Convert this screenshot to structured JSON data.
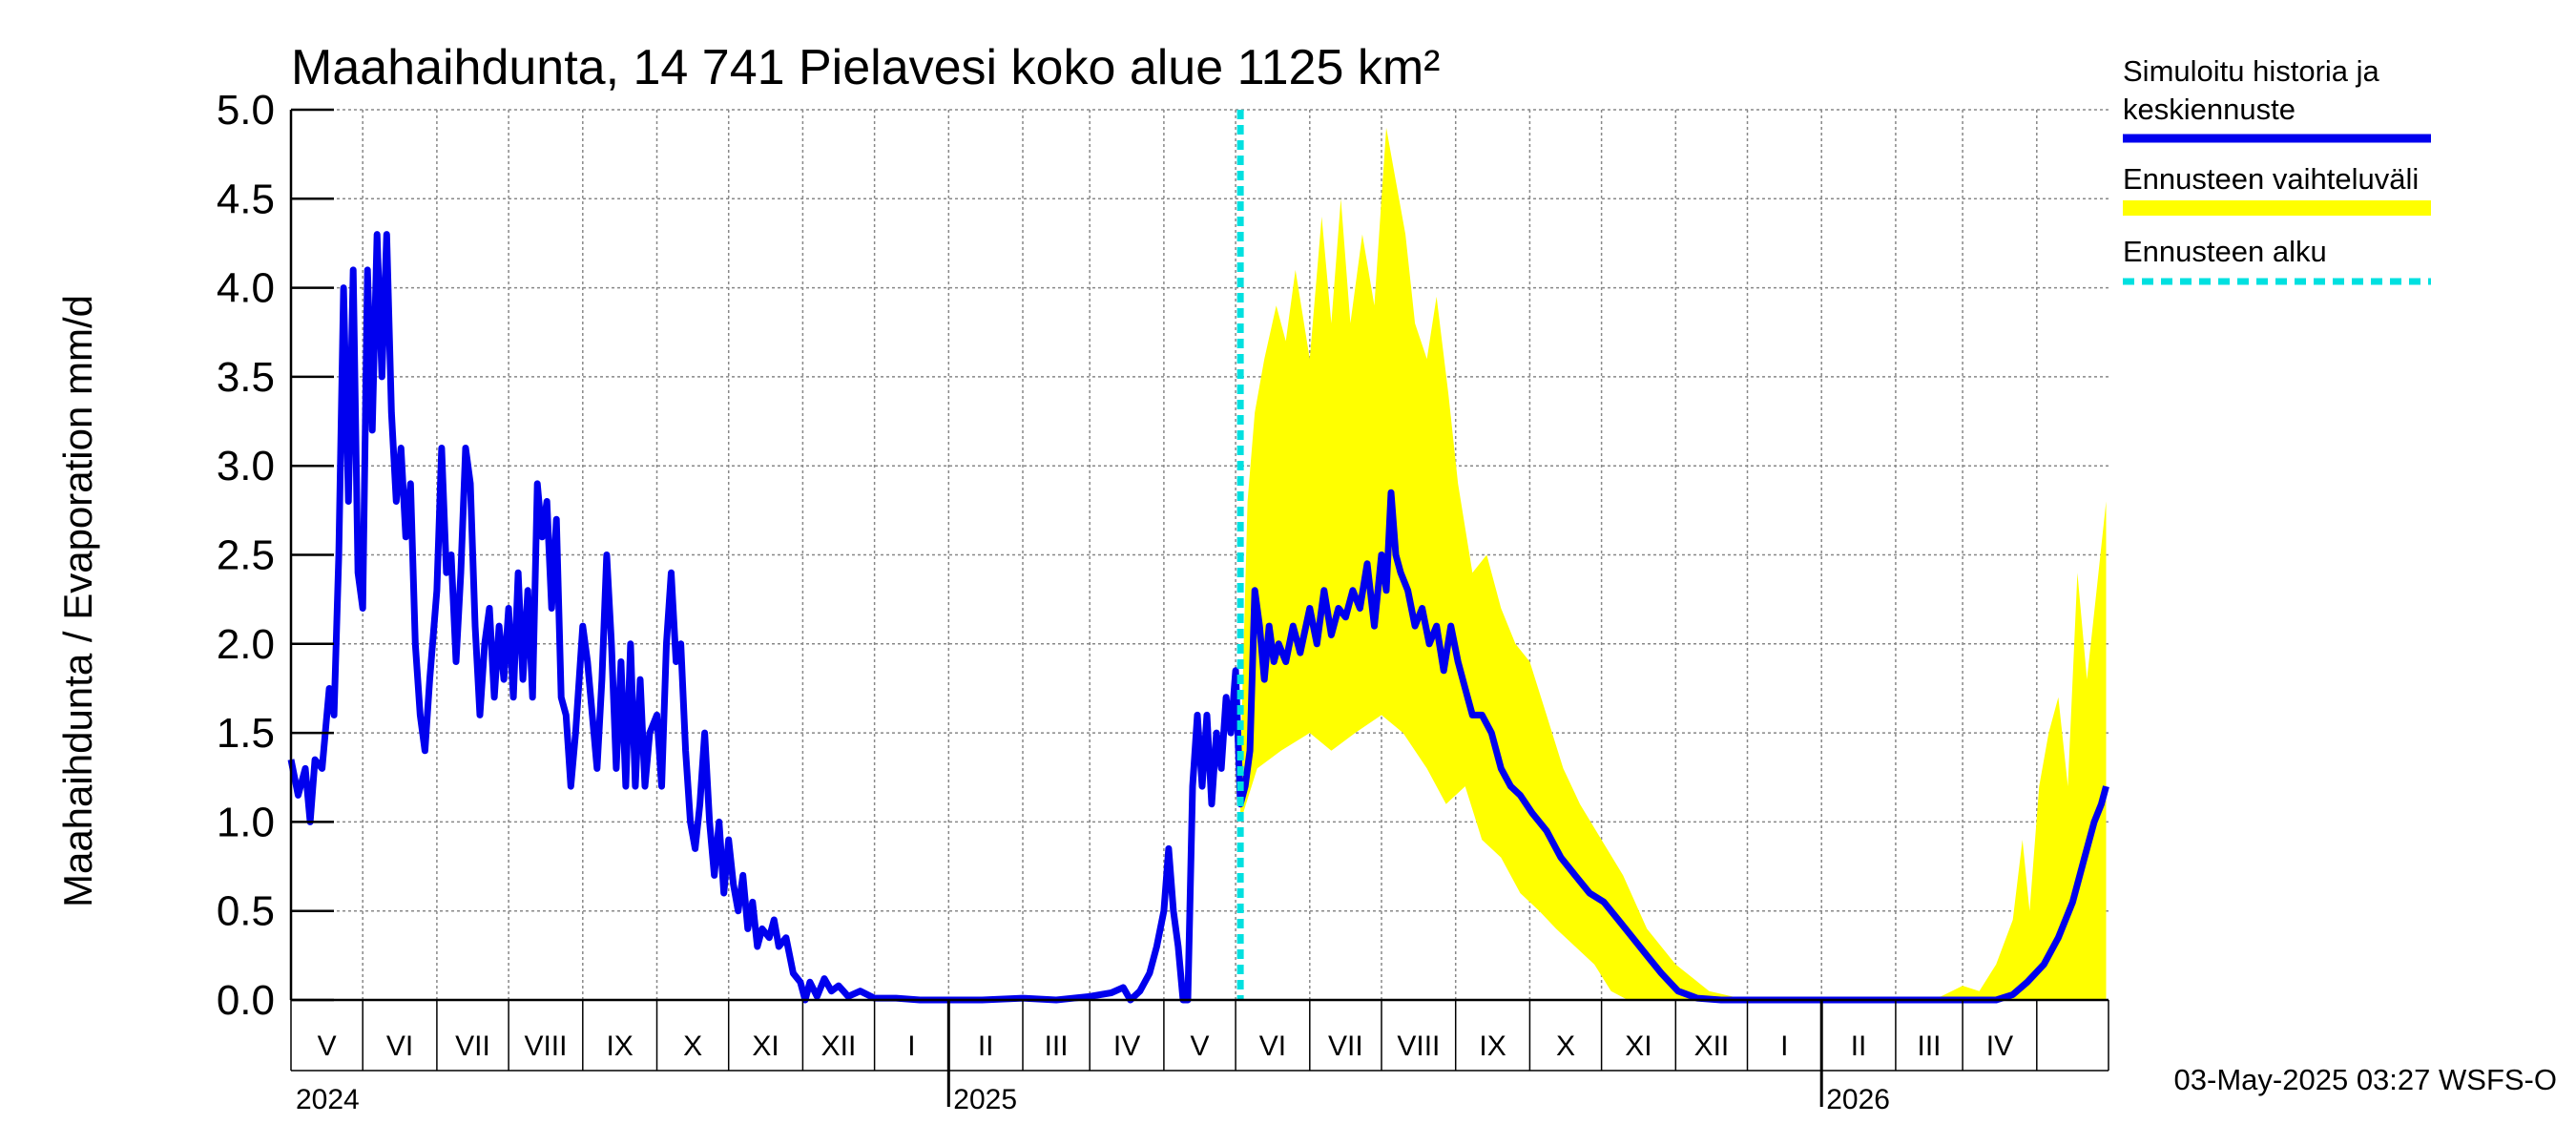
{
  "chart_data": {
    "type": "line",
    "title": "Maahaihdunta, 14 741 Pielavesi koko alue 1125 km²",
    "ylabel": "Maahaihdunta / Evaporation   mm/d",
    "ylim": [
      0,
      5
    ],
    "y_ticks": [
      "0.0",
      "0.5",
      "1.0",
      "1.5",
      "2.0",
      "2.5",
      "3.0",
      "3.5",
      "4.0",
      "4.5",
      "5.0"
    ],
    "x_range": [
      "2024-04-01",
      "2026-04-30"
    ],
    "grid": true,
    "month_labels": [
      "V",
      "VI",
      "VII",
      "VIII",
      "IX",
      "X",
      "XI",
      "XII",
      "I",
      "II",
      "III",
      "IV",
      "V",
      "VI",
      "VII",
      "VIII",
      "IX",
      "X",
      "XI",
      "XII",
      "I",
      "II",
      "III",
      "IV"
    ],
    "year_labels": [
      "2024",
      "2025",
      "2026"
    ],
    "forecast_start": "2025-05-03",
    "legend": [
      {
        "line1": "Simuloitu historia ja",
        "line2": "keskiennuste",
        "color": "#0000ee",
        "style": "solid"
      },
      {
        "line1": "Ennusteen vaihteluväli",
        "line2": "",
        "color": "#ffff00",
        "style": "band"
      },
      {
        "line1": "Ennusteen alku",
        "line2": "",
        "color": "#00e0e0",
        "style": "dashed"
      }
    ],
    "series": [
      {
        "name": "Simuloitu historia ja keskiennuste",
        "color": "#0000ee",
        "points": [
          [
            "2024-04-01",
            1.35
          ],
          [
            "2024-04-04",
            1.15
          ],
          [
            "2024-04-07",
            1.3
          ],
          [
            "2024-04-09",
            1.0
          ],
          [
            "2024-04-11",
            1.35
          ],
          [
            "2024-04-14",
            1.3
          ],
          [
            "2024-04-17",
            1.75
          ],
          [
            "2024-04-19",
            1.6
          ],
          [
            "2024-04-21",
            2.5
          ],
          [
            "2024-04-23",
            4.0
          ],
          [
            "2024-04-25",
            2.8
          ],
          [
            "2024-04-27",
            4.1
          ],
          [
            "2024-04-29",
            2.4
          ],
          [
            "2024-05-01",
            2.2
          ],
          [
            "2024-05-03",
            4.1
          ],
          [
            "2024-05-05",
            3.2
          ],
          [
            "2024-05-07",
            4.3
          ],
          [
            "2024-05-09",
            3.5
          ],
          [
            "2024-05-11",
            4.3
          ],
          [
            "2024-05-13",
            3.3
          ],
          [
            "2024-05-15",
            2.8
          ],
          [
            "2024-05-17",
            3.1
          ],
          [
            "2024-05-19",
            2.6
          ],
          [
            "2024-05-21",
            2.9
          ],
          [
            "2024-05-23",
            2.0
          ],
          [
            "2024-05-25",
            1.6
          ],
          [
            "2024-05-27",
            1.4
          ],
          [
            "2024-05-29",
            1.8
          ],
          [
            "2024-06-01",
            2.3
          ],
          [
            "2024-06-03",
            3.1
          ],
          [
            "2024-06-05",
            2.4
          ],
          [
            "2024-06-07",
            2.5
          ],
          [
            "2024-06-09",
            1.9
          ],
          [
            "2024-06-11",
            2.4
          ],
          [
            "2024-06-13",
            3.1
          ],
          [
            "2024-06-15",
            2.9
          ],
          [
            "2024-06-17",
            2.1
          ],
          [
            "2024-06-19",
            1.6
          ],
          [
            "2024-06-21",
            2.0
          ],
          [
            "2024-06-23",
            2.2
          ],
          [
            "2024-06-25",
            1.7
          ],
          [
            "2024-06-27",
            2.1
          ],
          [
            "2024-06-29",
            1.8
          ],
          [
            "2024-07-01",
            2.2
          ],
          [
            "2024-07-03",
            1.7
          ],
          [
            "2024-07-05",
            2.4
          ],
          [
            "2024-07-07",
            1.8
          ],
          [
            "2024-07-09",
            2.3
          ],
          [
            "2024-07-11",
            1.7
          ],
          [
            "2024-07-13",
            2.9
          ],
          [
            "2024-07-15",
            2.6
          ],
          [
            "2024-07-17",
            2.8
          ],
          [
            "2024-07-19",
            2.2
          ],
          [
            "2024-07-21",
            2.7
          ],
          [
            "2024-07-23",
            1.7
          ],
          [
            "2024-07-25",
            1.6
          ],
          [
            "2024-07-27",
            1.2
          ],
          [
            "2024-07-29",
            1.5
          ],
          [
            "2024-08-01",
            2.1
          ],
          [
            "2024-08-03",
            1.9
          ],
          [
            "2024-08-05",
            1.6
          ],
          [
            "2024-08-07",
            1.3
          ],
          [
            "2024-08-09",
            1.8
          ],
          [
            "2024-08-11",
            2.5
          ],
          [
            "2024-08-13",
            2.0
          ],
          [
            "2024-08-15",
            1.3
          ],
          [
            "2024-08-17",
            1.9
          ],
          [
            "2024-08-19",
            1.2
          ],
          [
            "2024-08-21",
            2.0
          ],
          [
            "2024-08-23",
            1.2
          ],
          [
            "2024-08-25",
            1.8
          ],
          [
            "2024-08-27",
            1.2
          ],
          [
            "2024-08-29",
            1.5
          ],
          [
            "2024-09-01",
            1.6
          ],
          [
            "2024-09-03",
            1.2
          ],
          [
            "2024-09-05",
            2.0
          ],
          [
            "2024-09-07",
            2.4
          ],
          [
            "2024-09-09",
            1.9
          ],
          [
            "2024-09-11",
            2.0
          ],
          [
            "2024-09-13",
            1.4
          ],
          [
            "2024-09-15",
            1.0
          ],
          [
            "2024-09-17",
            0.85
          ],
          [
            "2024-09-19",
            1.1
          ],
          [
            "2024-09-21",
            1.5
          ],
          [
            "2024-09-23",
            1.0
          ],
          [
            "2024-09-25",
            0.7
          ],
          [
            "2024-09-27",
            1.0
          ],
          [
            "2024-09-29",
            0.6
          ],
          [
            "2024-10-01",
            0.9
          ],
          [
            "2024-10-03",
            0.65
          ],
          [
            "2024-10-05",
            0.5
          ],
          [
            "2024-10-07",
            0.7
          ],
          [
            "2024-10-09",
            0.4
          ],
          [
            "2024-10-11",
            0.55
          ],
          [
            "2024-10-13",
            0.3
          ],
          [
            "2024-10-15",
            0.4
          ],
          [
            "2024-10-18",
            0.35
          ],
          [
            "2024-10-20",
            0.45
          ],
          [
            "2024-10-22",
            0.3
          ],
          [
            "2024-10-25",
            0.35
          ],
          [
            "2024-10-28",
            0.15
          ],
          [
            "2024-10-31",
            0.1
          ],
          [
            "2024-11-02",
            0.0
          ],
          [
            "2024-11-04",
            0.1
          ],
          [
            "2024-11-07",
            0.02
          ],
          [
            "2024-11-10",
            0.12
          ],
          [
            "2024-11-13",
            0.05
          ],
          [
            "2024-11-16",
            0.08
          ],
          [
            "2024-11-20",
            0.02
          ],
          [
            "2024-11-25",
            0.05
          ],
          [
            "2024-12-01",
            0.01
          ],
          [
            "2024-12-10",
            0.01
          ],
          [
            "2024-12-20",
            0.0
          ],
          [
            "2025-01-01",
            0.0
          ],
          [
            "2025-01-15",
            0.0
          ],
          [
            "2025-02-01",
            0.01
          ],
          [
            "2025-02-15",
            0.0
          ],
          [
            "2025-03-01",
            0.02
          ],
          [
            "2025-03-10",
            0.04
          ],
          [
            "2025-03-15",
            0.07
          ],
          [
            "2025-03-18",
            0.0
          ],
          [
            "2025-03-22",
            0.05
          ],
          [
            "2025-03-26",
            0.15
          ],
          [
            "2025-03-29",
            0.3
          ],
          [
            "2025-04-01",
            0.5
          ],
          [
            "2025-04-03",
            0.85
          ],
          [
            "2025-04-05",
            0.5
          ],
          [
            "2025-04-07",
            0.3
          ],
          [
            "2025-04-09",
            0.0
          ],
          [
            "2025-04-11",
            0.0
          ],
          [
            "2025-04-13",
            1.2
          ],
          [
            "2025-04-15",
            1.6
          ],
          [
            "2025-04-17",
            1.2
          ],
          [
            "2025-04-19",
            1.6
          ],
          [
            "2025-04-21",
            1.1
          ],
          [
            "2025-04-23",
            1.5
          ],
          [
            "2025-04-25",
            1.3
          ],
          [
            "2025-04-27",
            1.7
          ],
          [
            "2025-04-29",
            1.5
          ],
          [
            "2025-05-01",
            1.85
          ],
          [
            "2025-05-03",
            1.1
          ],
          [
            "2025-05-05",
            1.2
          ],
          [
            "2025-05-07",
            1.4
          ],
          [
            "2025-05-09",
            2.3
          ],
          [
            "2025-05-11",
            2.1
          ],
          [
            "2025-05-13",
            1.8
          ],
          [
            "2025-05-15",
            2.1
          ],
          [
            "2025-05-17",
            1.9
          ],
          [
            "2025-05-19",
            2.0
          ],
          [
            "2025-05-22",
            1.9
          ],
          [
            "2025-05-25",
            2.1
          ],
          [
            "2025-05-28",
            1.95
          ],
          [
            "2025-06-01",
            2.2
          ],
          [
            "2025-06-04",
            2.0
          ],
          [
            "2025-06-07",
            2.3
          ],
          [
            "2025-06-10",
            2.05
          ],
          [
            "2025-06-13",
            2.2
          ],
          [
            "2025-06-16",
            2.15
          ],
          [
            "2025-06-19",
            2.3
          ],
          [
            "2025-06-22",
            2.2
          ],
          [
            "2025-06-25",
            2.45
          ],
          [
            "2025-06-28",
            2.1
          ],
          [
            "2025-07-01",
            2.5
          ],
          [
            "2025-07-03",
            2.3
          ],
          [
            "2025-07-05",
            2.85
          ],
          [
            "2025-07-07",
            2.5
          ],
          [
            "2025-07-09",
            2.4
          ],
          [
            "2025-07-12",
            2.3
          ],
          [
            "2025-07-15",
            2.1
          ],
          [
            "2025-07-18",
            2.2
          ],
          [
            "2025-07-21",
            2.0
          ],
          [
            "2025-07-24",
            2.1
          ],
          [
            "2025-07-27",
            1.85
          ],
          [
            "2025-07-30",
            2.1
          ],
          [
            "2025-08-02",
            1.9
          ],
          [
            "2025-08-05",
            1.75
          ],
          [
            "2025-08-08",
            1.6
          ],
          [
            "2025-08-12",
            1.6
          ],
          [
            "2025-08-16",
            1.5
          ],
          [
            "2025-08-20",
            1.3
          ],
          [
            "2025-08-24",
            1.2
          ],
          [
            "2025-08-28",
            1.15
          ],
          [
            "2025-09-02",
            1.05
          ],
          [
            "2025-09-08",
            0.95
          ],
          [
            "2025-09-14",
            0.8
          ],
          [
            "2025-09-20",
            0.7
          ],
          [
            "2025-09-26",
            0.6
          ],
          [
            "2025-10-02",
            0.55
          ],
          [
            "2025-10-08",
            0.45
          ],
          [
            "2025-10-14",
            0.35
          ],
          [
            "2025-10-20",
            0.25
          ],
          [
            "2025-10-26",
            0.15
          ],
          [
            "2025-11-02",
            0.05
          ],
          [
            "2025-11-10",
            0.01
          ],
          [
            "2025-11-20",
            0.0
          ],
          [
            "2025-12-01",
            0.0
          ],
          [
            "2026-01-01",
            0.0
          ],
          [
            "2026-02-01",
            0.0
          ],
          [
            "2026-03-01",
            0.0
          ],
          [
            "2026-03-15",
            0.0
          ],
          [
            "2026-03-22",
            0.03
          ],
          [
            "2026-03-28",
            0.1
          ],
          [
            "2026-04-04",
            0.2
          ],
          [
            "2026-04-10",
            0.35
          ],
          [
            "2026-04-16",
            0.55
          ],
          [
            "2026-04-21",
            0.8
          ],
          [
            "2026-04-25",
            1.0
          ],
          [
            "2026-04-28",
            1.1
          ],
          [
            "2026-04-30",
            1.2
          ]
        ]
      }
    ],
    "band": {
      "name": "Ennusteen vaihteluväli",
      "color": "#ffff00",
      "upper": [
        [
          "2025-05-03",
          1.3
        ],
        [
          "2025-05-06",
          2.8
        ],
        [
          "2025-05-09",
          3.3
        ],
        [
          "2025-05-13",
          3.6
        ],
        [
          "2025-05-18",
          3.9
        ],
        [
          "2025-05-22",
          3.7
        ],
        [
          "2025-05-26",
          4.1
        ],
        [
          "2025-06-01",
          3.6
        ],
        [
          "2025-06-06",
          4.4
        ],
        [
          "2025-06-10",
          3.8
        ],
        [
          "2025-06-14",
          4.5
        ],
        [
          "2025-06-18",
          3.8
        ],
        [
          "2025-06-23",
          4.3
        ],
        [
          "2025-06-28",
          3.9
        ],
        [
          "2025-07-03",
          4.9
        ],
        [
          "2025-07-07",
          4.6
        ],
        [
          "2025-07-11",
          4.3
        ],
        [
          "2025-07-15",
          3.8
        ],
        [
          "2025-07-20",
          3.6
        ],
        [
          "2025-07-24",
          3.95
        ],
        [
          "2025-07-29",
          3.4
        ],
        [
          "2025-08-02",
          2.9
        ],
        [
          "2025-08-08",
          2.4
        ],
        [
          "2025-08-14",
          2.5
        ],
        [
          "2025-08-20",
          2.2
        ],
        [
          "2025-08-26",
          2.0
        ],
        [
          "2025-09-01",
          1.9
        ],
        [
          "2025-09-08",
          1.6
        ],
        [
          "2025-09-15",
          1.3
        ],
        [
          "2025-09-22",
          1.1
        ],
        [
          "2025-10-01",
          0.9
        ],
        [
          "2025-10-10",
          0.7
        ],
        [
          "2025-10-20",
          0.4
        ],
        [
          "2025-11-01",
          0.2
        ],
        [
          "2025-11-15",
          0.05
        ],
        [
          "2025-12-01",
          0.0
        ],
        [
          "2026-02-10",
          0.0
        ],
        [
          "2026-02-20",
          0.02
        ],
        [
          "2026-03-01",
          0.08
        ],
        [
          "2026-03-08",
          0.05
        ],
        [
          "2026-03-15",
          0.2
        ],
        [
          "2026-03-22",
          0.45
        ],
        [
          "2026-03-26",
          0.9
        ],
        [
          "2026-03-29",
          0.5
        ],
        [
          "2026-04-02",
          1.2
        ],
        [
          "2026-04-06",
          1.5
        ],
        [
          "2026-04-10",
          1.7
        ],
        [
          "2026-04-14",
          1.2
        ],
        [
          "2026-04-18",
          2.4
        ],
        [
          "2026-04-22",
          1.8
        ],
        [
          "2026-04-26",
          2.3
        ],
        [
          "2026-04-30",
          2.8
        ]
      ],
      "lower": [
        [
          "2025-05-03",
          1.0
        ],
        [
          "2025-05-10",
          1.3
        ],
        [
          "2025-05-20",
          1.4
        ],
        [
          "2025-06-01",
          1.5
        ],
        [
          "2025-06-10",
          1.4
        ],
        [
          "2025-06-20",
          1.5
        ],
        [
          "2025-07-01",
          1.6
        ],
        [
          "2025-07-10",
          1.5
        ],
        [
          "2025-07-20",
          1.3
        ],
        [
          "2025-07-28",
          1.1
        ],
        [
          "2025-08-05",
          1.2
        ],
        [
          "2025-08-12",
          0.9
        ],
        [
          "2025-08-20",
          0.8
        ],
        [
          "2025-08-28",
          0.6
        ],
        [
          "2025-09-05",
          0.5
        ],
        [
          "2025-09-12",
          0.4
        ],
        [
          "2025-09-20",
          0.3
        ],
        [
          "2025-09-28",
          0.2
        ],
        [
          "2025-10-05",
          0.05
        ],
        [
          "2025-10-12",
          0.0
        ],
        [
          "2026-04-30",
          0.0
        ]
      ]
    }
  },
  "footer": "03-May-2025 03:27 WSFS-O"
}
